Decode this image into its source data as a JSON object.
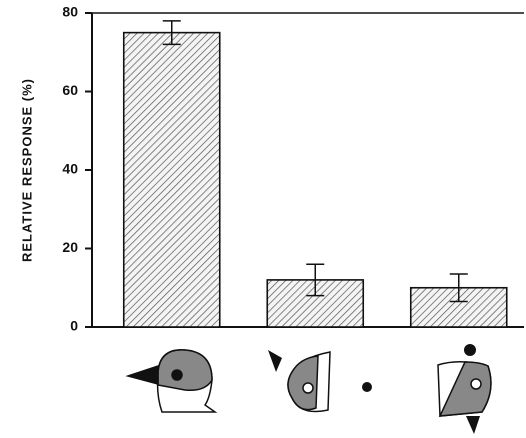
{
  "chart_data": {
    "type": "bar",
    "y_label": "RELATIVE RESPONSE (%)",
    "categories": [
      null,
      null,
      null
    ],
    "values": [
      75,
      12,
      10
    ],
    "errors": [
      3,
      4,
      3.5
    ],
    "color": "#555555",
    "ylim": [
      0,
      80
    ],
    "yticks": [
      0,
      20,
      40,
      60,
      80
    ]
  }
}
